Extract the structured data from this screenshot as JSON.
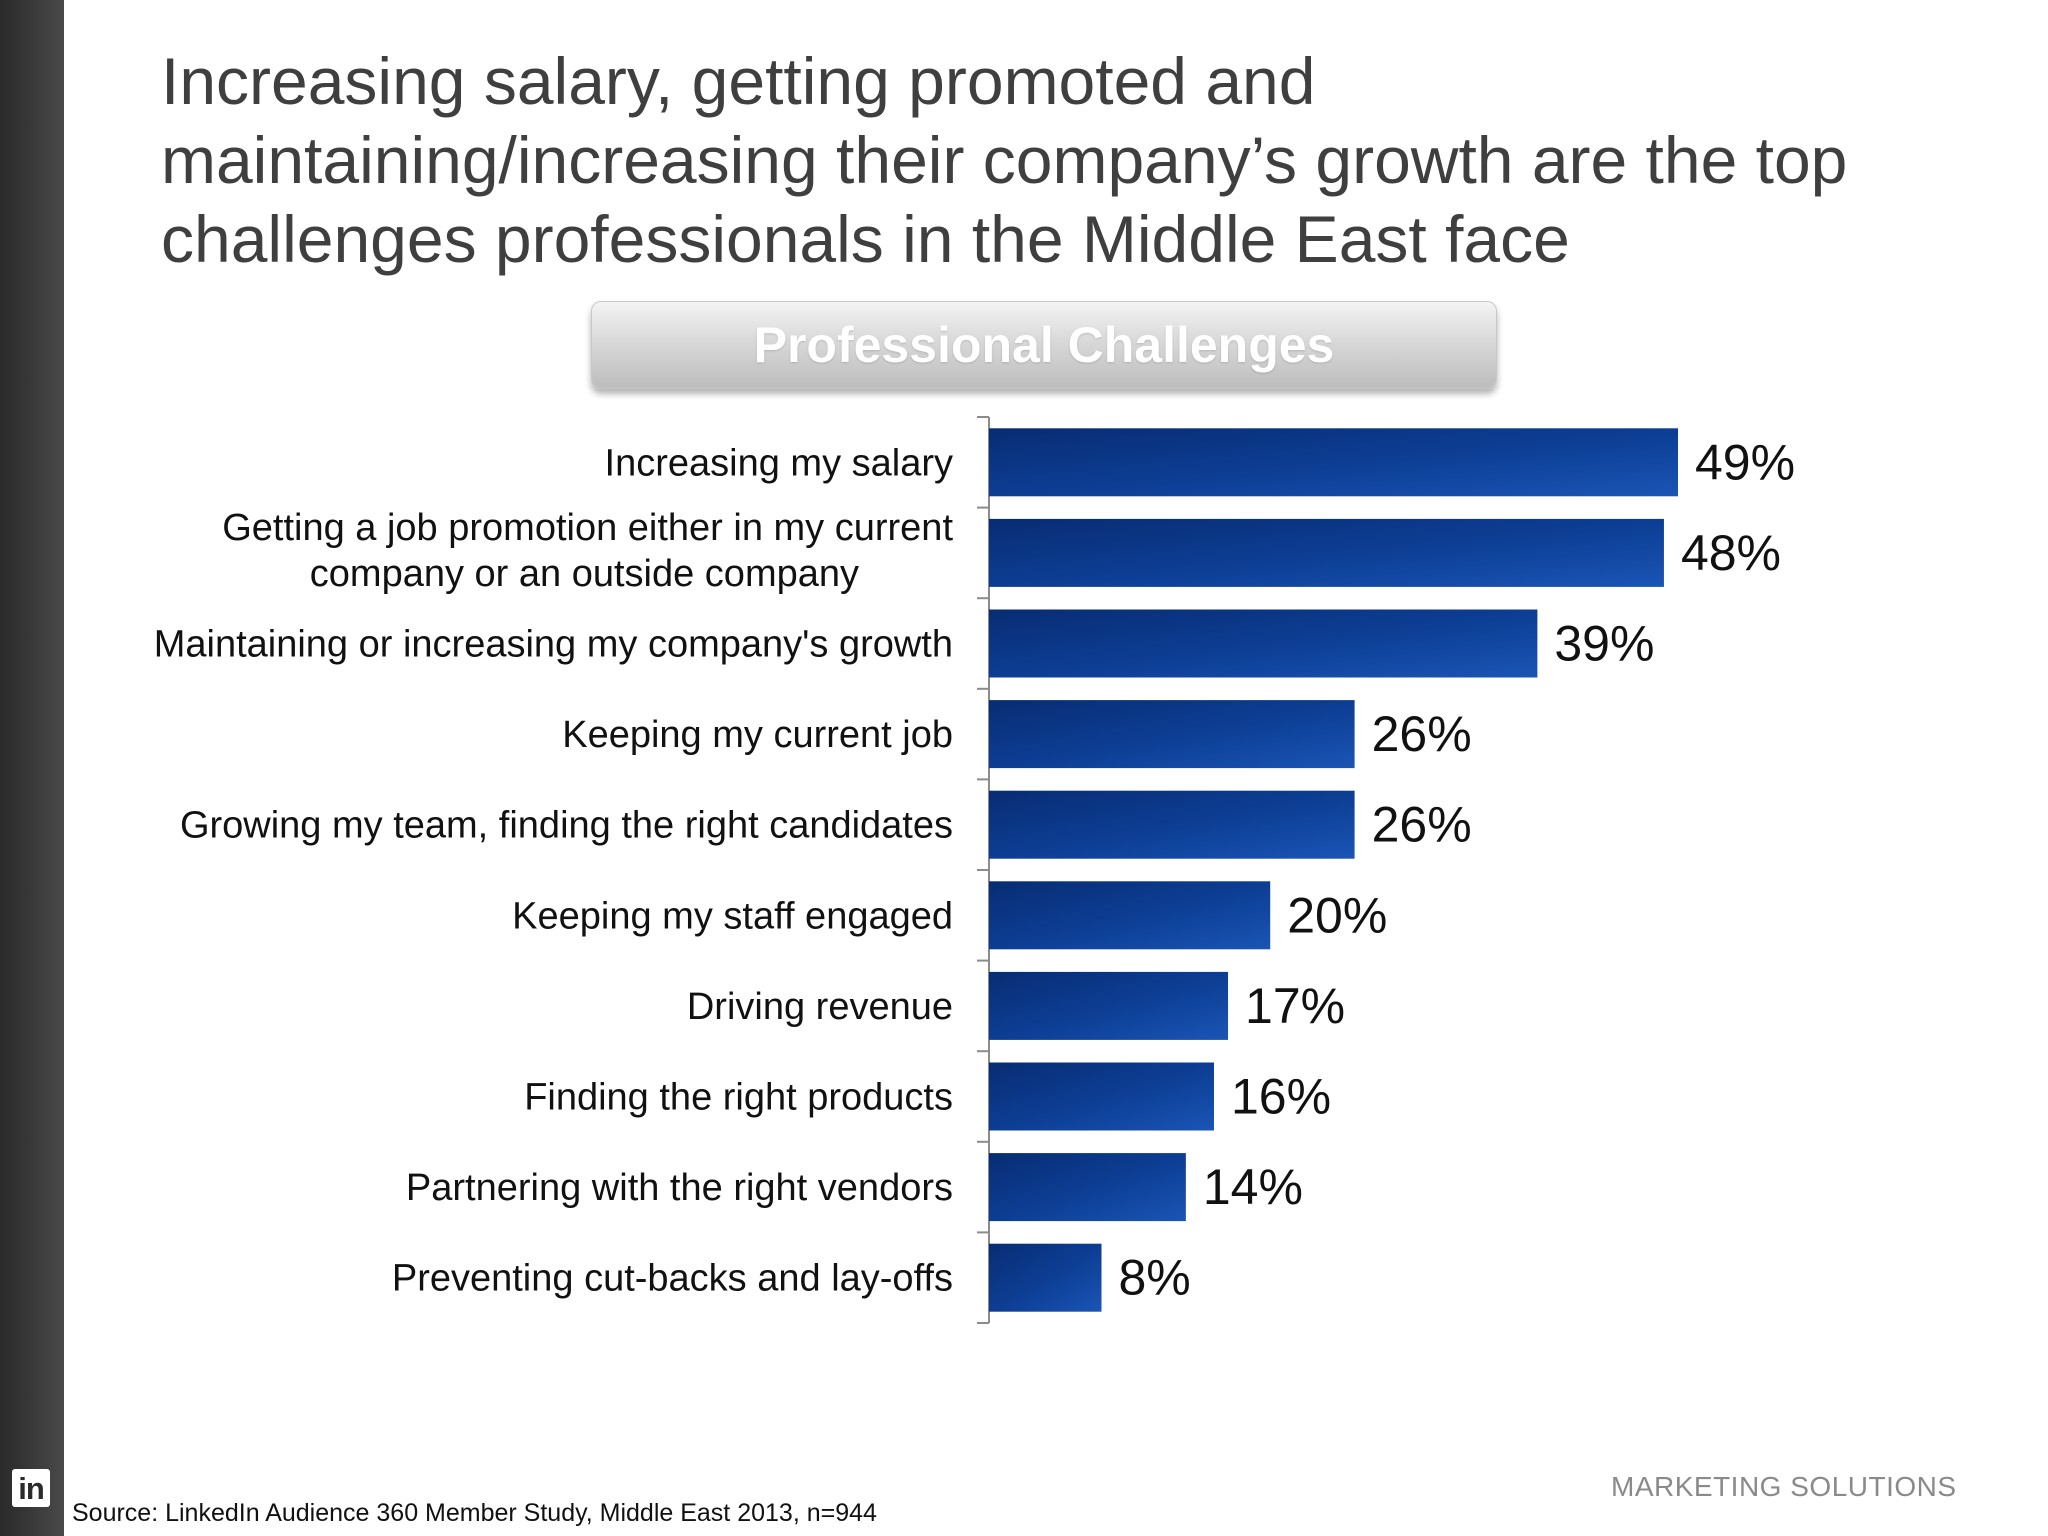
{
  "title_lines": [
    "Increasing salary, getting promoted and",
    "maintaining/increasing their company’s growth are the top",
    "challenges professionals in the Middle East face"
  ],
  "chart_header": "Professional Challenges",
  "chart_data": {
    "type": "bar",
    "orientation": "horizontal",
    "title": "Professional Challenges",
    "xlabel": "",
    "ylabel": "",
    "xlim": [
      0,
      49
    ],
    "value_suffix": "%",
    "categories": [
      [
        "Increasing my salary"
      ],
      [
        "Getting a job promotion either in my current",
        "company or an outside company"
      ],
      [
        "Maintaining or increasing my company's growth"
      ],
      [
        "Keeping my current job"
      ],
      [
        "Growing my team, finding the right candidates"
      ],
      [
        "Keeping my staff engaged"
      ],
      [
        "Driving revenue"
      ],
      [
        "Finding the right products"
      ],
      [
        "Partnering with the right vendors"
      ],
      [
        "Preventing cut-backs and lay-offs"
      ]
    ],
    "values": [
      49,
      48,
      39,
      26,
      26,
      20,
      17,
      16,
      14,
      8
    ],
    "bar_color": "#0d3f96"
  },
  "footer": {
    "source": "Source:  LinkedIn Audience 360 Member Study, Middle East 2013, n=944",
    "brand": "MARKETING SOLUTIONS",
    "logo_text": "in"
  },
  "colors": {
    "title": "#3f3f3f",
    "bar_dark": "#0a2f7c",
    "bar_light": "#1a56b8"
  }
}
